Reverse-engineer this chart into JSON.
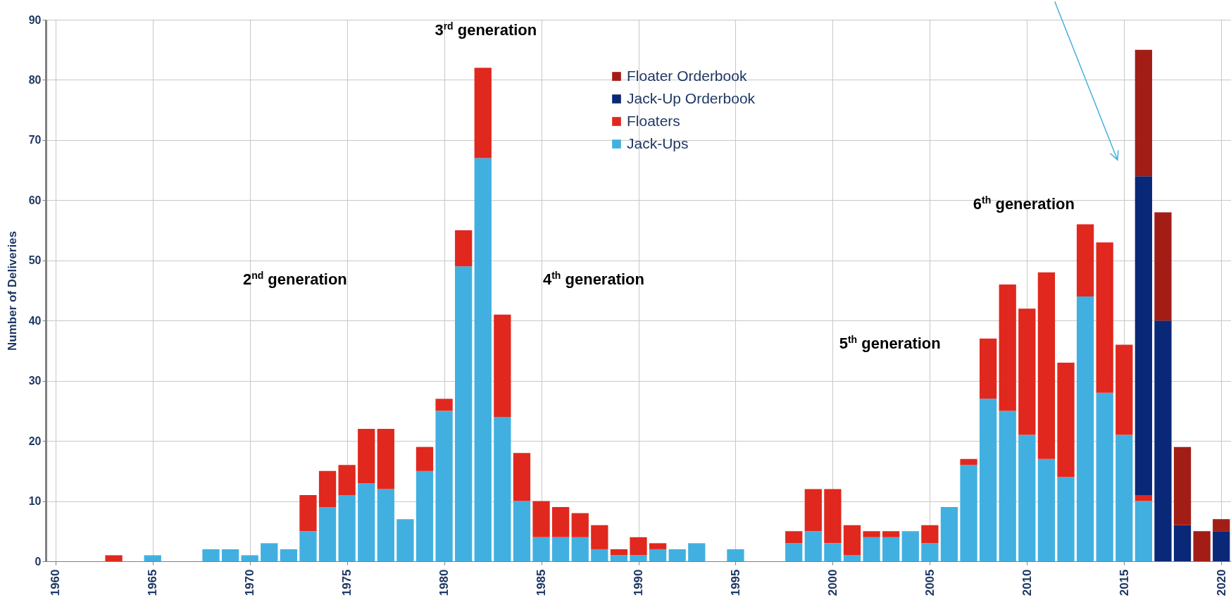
{
  "chart_data": {
    "type": "bar",
    "stacked": true,
    "ylabel": "Number of Deliveries",
    "x": [
      1960,
      1961,
      1962,
      1963,
      1964,
      1965,
      1966,
      1967,
      1968,
      1969,
      1970,
      1971,
      1972,
      1973,
      1974,
      1975,
      1976,
      1977,
      1978,
      1979,
      1980,
      1981,
      1982,
      1983,
      1984,
      1985,
      1986,
      1987,
      1988,
      1989,
      1990,
      1991,
      1992,
      1993,
      1994,
      1995,
      1996,
      1997,
      1998,
      1999,
      2000,
      2001,
      2002,
      2003,
      2004,
      2005,
      2006,
      2007,
      2008,
      2009,
      2010,
      2011,
      2012,
      2013,
      2014,
      2015,
      2016,
      2017,
      2018,
      2019,
      2020
    ],
    "series": [
      {
        "name": "Jack-Ups",
        "color": "#41b0e0",
        "values": [
          0,
          0,
          0,
          null,
          0,
          1,
          0,
          0,
          2,
          2,
          1,
          3,
          2,
          5,
          9,
          11,
          13,
          12,
          7,
          15,
          25,
          49,
          67,
          24,
          10,
          4,
          4,
          4,
          2,
          1,
          1,
          2,
          2,
          3,
          0,
          2,
          0,
          0,
          3,
          5,
          3,
          1,
          4,
          4,
          5,
          3,
          9,
          16,
          27,
          25,
          21,
          17,
          14,
          44,
          28,
          21,
          10,
          null,
          null,
          null,
          null
        ]
      },
      {
        "name": "Floaters",
        "color": "#e0281e",
        "values": [
          null,
          null,
          null,
          1,
          null,
          null,
          null,
          null,
          null,
          null,
          null,
          null,
          null,
          6,
          6,
          5,
          9,
          10,
          null,
          4,
          2,
          6,
          15,
          17,
          8,
          6,
          5,
          4,
          4,
          1,
          3,
          1,
          null,
          null,
          null,
          null,
          null,
          null,
          2,
          7,
          9,
          5,
          1,
          1,
          null,
          3,
          null,
          1,
          10,
          21,
          21,
          31,
          19,
          12,
          25,
          15,
          1,
          null,
          null,
          null,
          null
        ]
      },
      {
        "name": "Jack-Up Orderbook",
        "color": "#0a2878",
        "values": [
          null,
          null,
          null,
          null,
          null,
          null,
          null,
          null,
          null,
          null,
          null,
          null,
          null,
          null,
          null,
          null,
          null,
          null,
          null,
          null,
          null,
          null,
          null,
          null,
          null,
          null,
          null,
          null,
          null,
          null,
          null,
          null,
          null,
          null,
          null,
          null,
          null,
          null,
          null,
          null,
          null,
          null,
          null,
          null,
          null,
          null,
          null,
          null,
          null,
          null,
          null,
          null,
          null,
          null,
          null,
          null,
          53,
          40,
          6,
          null,
          5
        ]
      },
      {
        "name": "Floater Orderbook",
        "color": "#a31d17",
        "values": [
          null,
          null,
          null,
          null,
          null,
          null,
          null,
          null,
          null,
          null,
          null,
          null,
          null,
          null,
          null,
          null,
          null,
          null,
          null,
          null,
          null,
          null,
          null,
          null,
          null,
          null,
          null,
          null,
          null,
          null,
          null,
          null,
          null,
          null,
          null,
          null,
          null,
          null,
          null,
          null,
          null,
          null,
          null,
          null,
          null,
          null,
          null,
          null,
          null,
          null,
          null,
          null,
          null,
          null,
          null,
          null,
          21,
          18,
          13,
          5,
          2
        ]
      }
    ],
    "xlim": [
      1959.5,
      2020.5
    ],
    "xticks": [
      1960,
      1965,
      1970,
      1975,
      1980,
      1985,
      1990,
      1995,
      2000,
      2005,
      2010,
      2015,
      2020
    ],
    "ylim": [
      0,
      90
    ],
    "yticks": [
      0,
      10,
      20,
      30,
      40,
      50,
      60,
      70,
      80,
      90
    ],
    "grid": true,
    "legend": "top",
    "annotations": [
      "2$^{nd}$ generation",
      "3$^{rd}$ generation",
      "4$^{th}$ generation",
      "5$^{th}$ generation",
      "6$^{th}$ generation"
    ]
  }
}
